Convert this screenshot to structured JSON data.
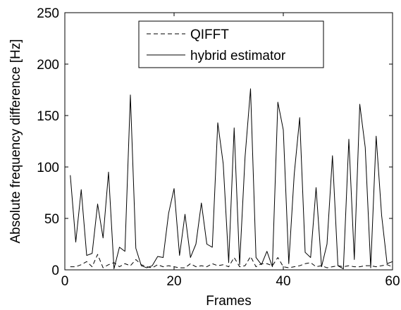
{
  "chart_data": {
    "type": "line",
    "title": "",
    "xlabel": "Frames",
    "ylabel": "Absolute frequency difference [Hz]",
    "xlim": [
      0,
      60
    ],
    "ylim": [
      0,
      250
    ],
    "xticks": [
      0,
      20,
      40,
      60
    ],
    "yticks": [
      0,
      50,
      100,
      150,
      200,
      250
    ],
    "grid": false,
    "legend_position": "top-center",
    "series": [
      {
        "name": "QIFFT",
        "style": "dashed",
        "color": "#000000",
        "x": [
          1,
          2,
          3,
          4,
          5,
          6,
          7,
          8,
          9,
          10,
          11,
          12,
          13,
          14,
          15,
          16,
          17,
          18,
          19,
          20,
          21,
          22,
          23,
          24,
          25,
          26,
          27,
          28,
          29,
          30,
          31,
          32,
          33,
          34,
          35,
          36,
          37,
          38,
          39,
          40,
          41,
          42,
          43,
          44,
          45,
          46,
          47,
          48,
          49,
          50,
          51,
          52,
          53,
          54,
          55,
          56,
          57,
          58,
          59,
          60
        ],
        "values": [
          3,
          3,
          5,
          8,
          3,
          15,
          2,
          5,
          7,
          3,
          6,
          4,
          10,
          5,
          3,
          2,
          5,
          3,
          4,
          3,
          2,
          2,
          6,
          3,
          4,
          3,
          6,
          4,
          5,
          3,
          12,
          3,
          4,
          13,
          3,
          6,
          6,
          4,
          12,
          3,
          2,
          3,
          4,
          6,
          7,
          3,
          4,
          2,
          3,
          4,
          3,
          4,
          3,
          3,
          4,
          4,
          3,
          4,
          5,
          3
        ]
      },
      {
        "name": "hybrid estimator",
        "style": "solid",
        "color": "#000000",
        "x": [
          1,
          2,
          3,
          4,
          5,
          6,
          7,
          8,
          9,
          10,
          11,
          12,
          13,
          14,
          15,
          16,
          17,
          18,
          19,
          20,
          21,
          22,
          23,
          24,
          25,
          26,
          27,
          28,
          29,
          30,
          31,
          32,
          33,
          34,
          35,
          36,
          37,
          38,
          39,
          40,
          41,
          42,
          43,
          44,
          45,
          46,
          47,
          48,
          49,
          50,
          51,
          52,
          53,
          54,
          55,
          56,
          57,
          58,
          59,
          60
        ],
        "values": [
          92,
          27,
          78,
          14,
          16,
          64,
          31,
          95,
          1,
          22,
          18,
          170,
          21,
          4,
          2,
          4,
          13,
          12,
          55,
          79,
          14,
          54,
          12,
          25,
          65,
          25,
          22,
          143,
          103,
          7,
          138,
          5,
          110,
          176,
          12,
          5,
          18,
          3,
          163,
          136,
          6,
          93,
          148,
          17,
          12,
          80,
          3,
          25,
          111,
          4,
          1,
          127,
          10,
          161,
          119,
          2,
          130,
          53,
          6,
          8
        ]
      }
    ]
  }
}
